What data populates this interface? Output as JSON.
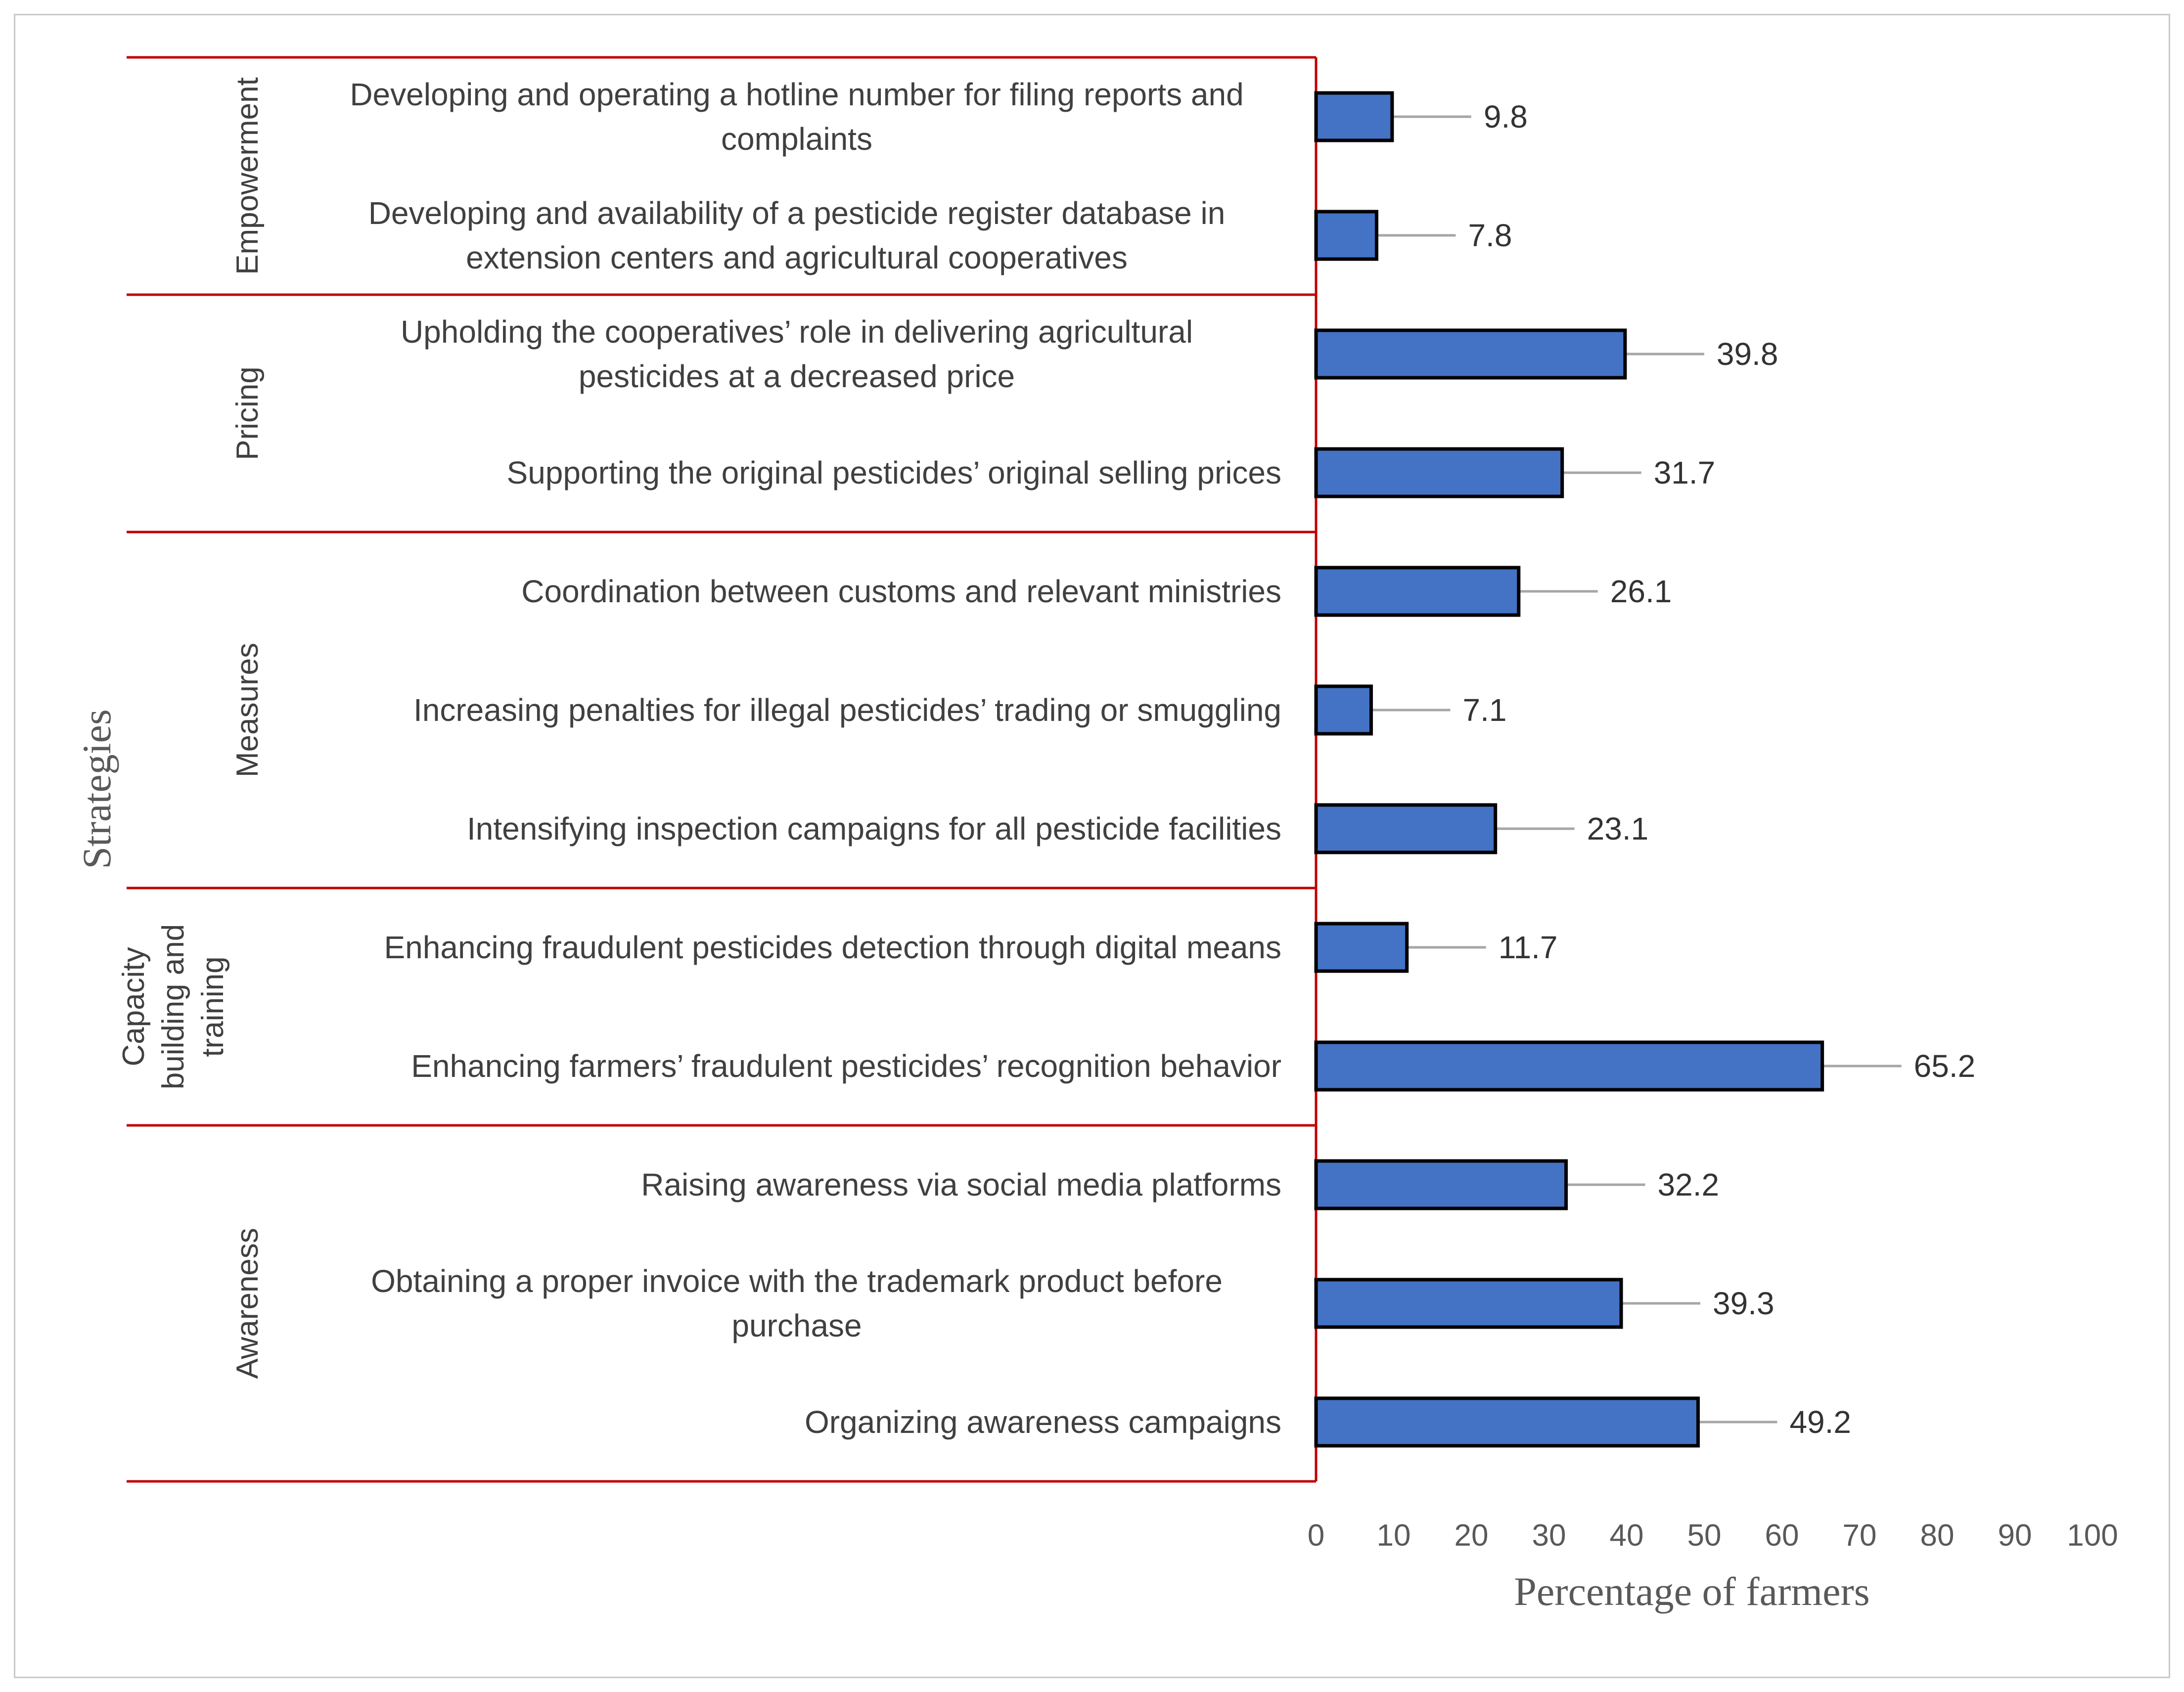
{
  "chart_data": {
    "type": "bar",
    "orientation": "horizontal",
    "ylabel": "Strategies",
    "xlabel": "Percentage of farmers",
    "xlim": [
      0,
      100
    ],
    "xticks": [
      "0",
      "10",
      "20",
      "30",
      "40",
      "50",
      "60",
      "70",
      "80",
      "90",
      "100"
    ],
    "groups": [
      {
        "name": "Empowerment",
        "label_lines": [
          "Empowerment"
        ],
        "items": [
          {
            "label_lines": [
              "Developing and operating a hotline number for filing reports and",
              "complaints"
            ],
            "value": 9.8,
            "value_label": "9.8"
          },
          {
            "label_lines": [
              "Developing and availability of a pesticide register database in",
              "extension centers and agricultural cooperatives"
            ],
            "value": 7.8,
            "value_label": "7.8"
          }
        ]
      },
      {
        "name": "Pricing",
        "label_lines": [
          "Pricing"
        ],
        "items": [
          {
            "label_lines": [
              "Upholding the cooperatives’ role in delivering agricultural",
              "pesticides at a decreased price"
            ],
            "value": 39.8,
            "value_label": "39.8"
          },
          {
            "label_lines": [
              "Supporting the original pesticides’ original selling prices"
            ],
            "value": 31.7,
            "value_label": "31.7"
          }
        ]
      },
      {
        "name": "Measures",
        "label_lines": [
          "Measures"
        ],
        "items": [
          {
            "label_lines": [
              "Coordination between customs and relevant ministries"
            ],
            "value": 26.1,
            "value_label": "26.1"
          },
          {
            "label_lines": [
              "Increasing penalties for illegal pesticides’ trading or smuggling"
            ],
            "value": 7.1,
            "value_label": "7.1"
          },
          {
            "label_lines": [
              "Intensifying inspection campaigns for all pesticide facilities"
            ],
            "value": 23.1,
            "value_label": "23.1"
          }
        ]
      },
      {
        "name": "Capacity building and training",
        "label_lines": [
          "Capacity",
          "building and",
          "training"
        ],
        "items": [
          {
            "label_lines": [
              "Enhancing fraudulent pesticides detection through digital means"
            ],
            "value": 11.7,
            "value_label": "11.7"
          },
          {
            "label_lines": [
              "Enhancing farmers’ fraudulent pesticides’ recognition behavior"
            ],
            "value": 65.2,
            "value_label": "65.2"
          }
        ]
      },
      {
        "name": "Awareness",
        "label_lines": [
          "Awareness"
        ],
        "items": [
          {
            "label_lines": [
              "Raising awareness via social media platforms"
            ],
            "value": 32.2,
            "value_label": "32.2"
          },
          {
            "label_lines": [
              "Obtaining a proper invoice with the trademark product before",
              "purchase"
            ],
            "value": 39.3,
            "value_label": "39.3"
          },
          {
            "label_lines": [
              "Organizing awareness campaigns"
            ],
            "value": 49.2,
            "value_label": "49.2"
          }
        ]
      }
    ],
    "colors": {
      "bar_fill": "#4472c4",
      "bar_stroke": "#000000",
      "separator": "#c00000",
      "leader": "#a6a6a6"
    }
  }
}
